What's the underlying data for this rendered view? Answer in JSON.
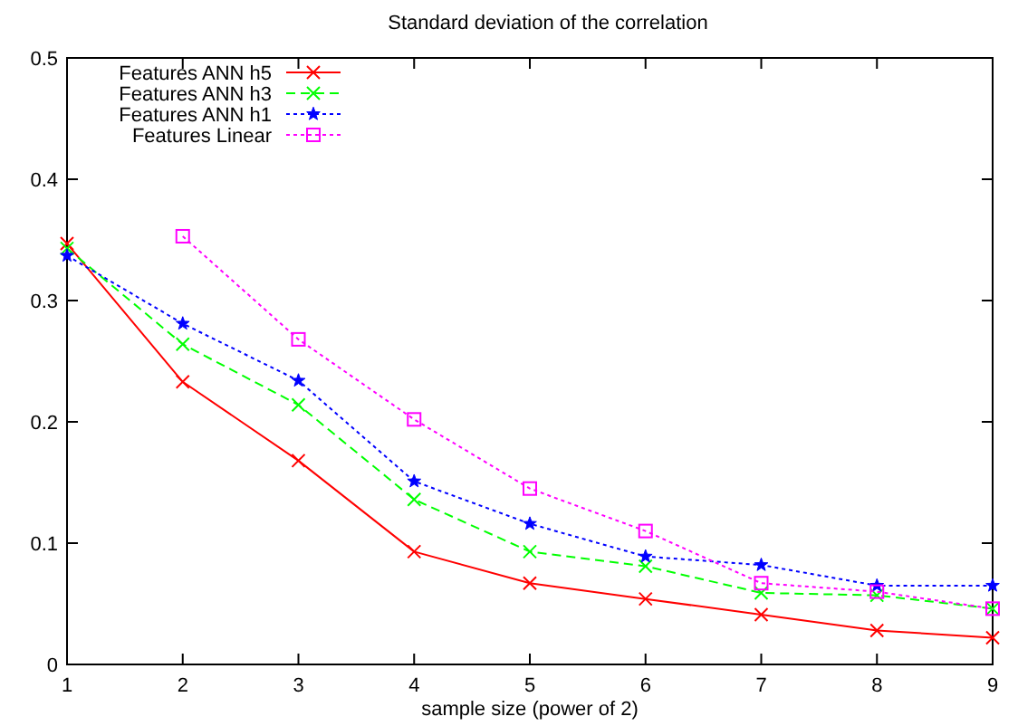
{
  "chart_data": {
    "type": "line",
    "title": "Standard deviation of the correlation",
    "xlabel": "sample size (power of 2)",
    "x": [
      1,
      2,
      3,
      4,
      5,
      6,
      7,
      8,
      9
    ],
    "xlim": [
      1,
      9
    ],
    "xticks": [
      1,
      2,
      3,
      4,
      5,
      6,
      7,
      8,
      9
    ],
    "ylim": [
      0,
      0.5
    ],
    "yticks": [
      0,
      0.1,
      0.2,
      0.3,
      0.4,
      0.5
    ],
    "legend": "top left",
    "grid": false,
    "series": [
      {
        "name": "Features ANN h5",
        "color": "#ff0000",
        "marker": "cross",
        "line_style": "solid",
        "values": [
          0.347,
          0.233,
          0.168,
          0.093,
          0.067,
          0.054,
          0.041,
          0.028,
          0.022
        ]
      },
      {
        "name": "Features ANN h3",
        "color": "#00ff00",
        "marker": "cross",
        "line_style": "dashed",
        "values": [
          0.343,
          0.264,
          0.214,
          0.136,
          0.093,
          0.081,
          0.059,
          0.057,
          0.046
        ]
      },
      {
        "name": "Features ANN h1",
        "color": "#0000ff",
        "marker": "star",
        "line_style": "dotted",
        "values": [
          0.337,
          0.281,
          0.234,
          0.151,
          0.116,
          0.089,
          0.082,
          0.065,
          0.065
        ]
      },
      {
        "name": "Features Linear",
        "color": "#ff00ff",
        "marker": "square",
        "line_style": "dotted",
        "values": [
          null,
          0.353,
          0.268,
          0.202,
          0.145,
          0.11,
          0.067,
          0.06,
          0.046
        ]
      }
    ]
  }
}
